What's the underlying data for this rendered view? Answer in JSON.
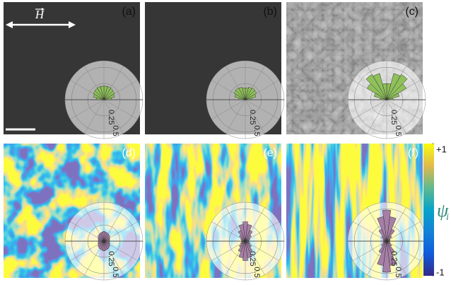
{
  "field_label": "H",
  "rose_scale": {
    "rlim": [
      0,
      0.6
    ],
    "ticks": [
      0.25,
      0.5
    ]
  },
  "panels": [
    {
      "label": "(a)",
      "rose": [
        0.12,
        0.17,
        0.19,
        0.2,
        0.21,
        0.21,
        0.21,
        0.21,
        0.2,
        0.19,
        0.17,
        0.12
      ]
    },
    {
      "label": "(b)",
      "rose": [
        0.1,
        0.17,
        0.2,
        0.21,
        0.2,
        0.18,
        0.18,
        0.2,
        0.21,
        0.2,
        0.17,
        0.1
      ]
    },
    {
      "label": "(c)",
      "rose": [
        0.1,
        0.2,
        0.35,
        0.45,
        0.42,
        0.25,
        0.25,
        0.42,
        0.45,
        0.35,
        0.2,
        0.1
      ]
    },
    {
      "label": "(d)",
      "rose": [
        0.08,
        0.09,
        0.1,
        0.12,
        0.13,
        0.14,
        0.15,
        0.14,
        0.13,
        0.12,
        0.1,
        0.09,
        0.08,
        0.09,
        0.1,
        0.12,
        0.13,
        0.14,
        0.15,
        0.14,
        0.13,
        0.12,
        0.1,
        0.09
      ]
    },
    {
      "label": "(e)",
      "rose": [
        0.05,
        0.06,
        0.08,
        0.12,
        0.18,
        0.26,
        0.3,
        0.26,
        0.18,
        0.12,
        0.08,
        0.06,
        0.05,
        0.06,
        0.08,
        0.12,
        0.18,
        0.26,
        0.3,
        0.26,
        0.18,
        0.12,
        0.08,
        0.06
      ]
    },
    {
      "label": "(f)",
      "rose": [
        0.04,
        0.05,
        0.06,
        0.1,
        0.2,
        0.38,
        0.48,
        0.38,
        0.2,
        0.1,
        0.06,
        0.05,
        0.04,
        0.05,
        0.06,
        0.1,
        0.2,
        0.38,
        0.48,
        0.38,
        0.2,
        0.1,
        0.06,
        0.05
      ]
    }
  ],
  "colorbar": {
    "symbol": "ψ",
    "subscript": "i",
    "clim": [
      -1,
      1
    ],
    "ticks": [
      {
        "value": 1,
        "label": "+1"
      },
      -1
    ]
  }
}
